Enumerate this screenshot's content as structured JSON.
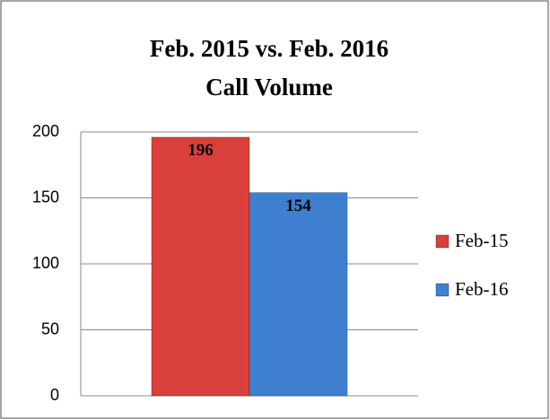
{
  "chart_data": {
    "type": "bar",
    "title": [
      "Feb. 2015 vs. Feb. 2016",
      "Call Volume"
    ],
    "categories": [
      null
    ],
    "series": [
      {
        "name": "Feb-15",
        "color": "#d9403b",
        "values": [
          196
        ]
      },
      {
        "name": "Feb-16",
        "color": "#3f7fcf",
        "values": [
          154
        ]
      }
    ],
    "ylim": [
      0,
      200
    ],
    "yticks": [
      0,
      50,
      100,
      150,
      200
    ],
    "grid": true,
    "legend": "right"
  }
}
